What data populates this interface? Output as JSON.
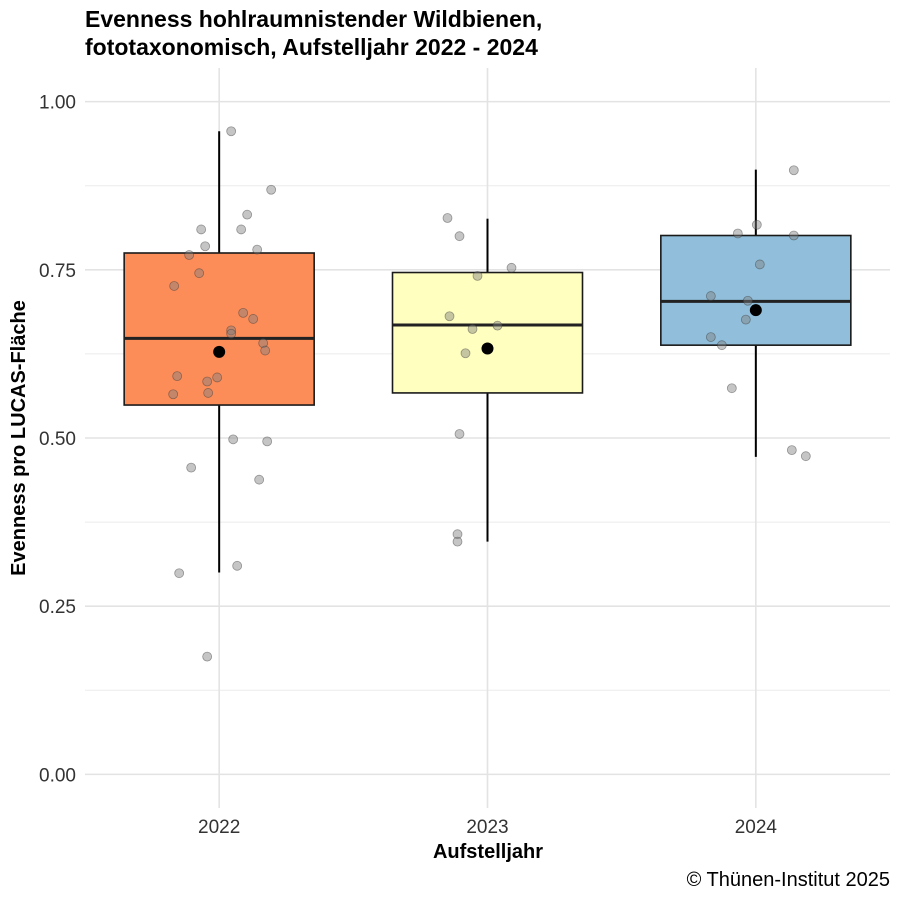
{
  "chart_data": {
    "type": "box",
    "title_line1": "Evenness hohlraumnistender Wildbienen,",
    "title_line2": "fototaxonomisch, Aufstelljahr 2022 - 2024",
    "xlabel": "Aufstelljahr",
    "ylabel": "Evenness pro LUCAS-Fläche",
    "caption": "© Thünen-Institut 2025",
    "ylim": [
      -0.05,
      1.05
    ],
    "yticks": [
      0.0,
      0.25,
      0.5,
      0.75,
      1.0
    ],
    "ytick_labels": [
      "0.00",
      "0.25",
      "0.50",
      "0.75",
      "1.00"
    ],
    "categories": [
      "2022",
      "2023",
      "2024"
    ],
    "grid": true,
    "boxes": [
      {
        "year": "2022",
        "color": "#fc8d59",
        "whisker_low": 0.3,
        "q1": 0.549,
        "median": 0.648,
        "q3": 0.775,
        "whisker_high": 0.956,
        "mean": 0.628,
        "points": [
          0.956,
          0.869,
          0.832,
          0.81,
          0.81,
          0.785,
          0.78,
          0.772,
          0.745,
          0.726,
          0.686,
          0.677,
          0.66,
          0.655,
          0.641,
          0.63,
          0.592,
          0.59,
          0.584,
          0.567,
          0.565,
          0.498,
          0.495,
          0.456,
          0.438,
          0.31,
          0.299,
          0.175
        ],
        "jitter": [
          0.956,
          0.869,
          0.832,
          0.81,
          0.81,
          0.785,
          0.78,
          0.772,
          0.745,
          0.726,
          0.686,
          0.677,
          0.66,
          0.655,
          0.641,
          0.63,
          0.592,
          0.59,
          0.584,
          0.567,
          0.565,
          0.498,
          0.495,
          0.456,
          0.438,
          0.31,
          0.299,
          0.175
        ]
      },
      {
        "year": "2023",
        "color": "#ffffbf",
        "whisker_low": 0.346,
        "q1": 0.567,
        "median": 0.668,
        "q3": 0.746,
        "whisker_high": 0.826,
        "mean": 0.633,
        "points": [
          0.827,
          0.8,
          0.753,
          0.741,
          0.681,
          0.667,
          0.662,
          0.626,
          0.506,
          0.357,
          0.346
        ]
      },
      {
        "year": "2024",
        "color": "#91bfdb",
        "whisker_low": 0.472,
        "q1": 0.638,
        "median": 0.703,
        "q3": 0.801,
        "whisker_high": 0.899,
        "mean": 0.69,
        "points": [
          0.898,
          0.817,
          0.804,
          0.801,
          0.758,
          0.711,
          0.704,
          0.676,
          0.65,
          0.638,
          0.574,
          0.482,
          0.473
        ]
      }
    ]
  }
}
